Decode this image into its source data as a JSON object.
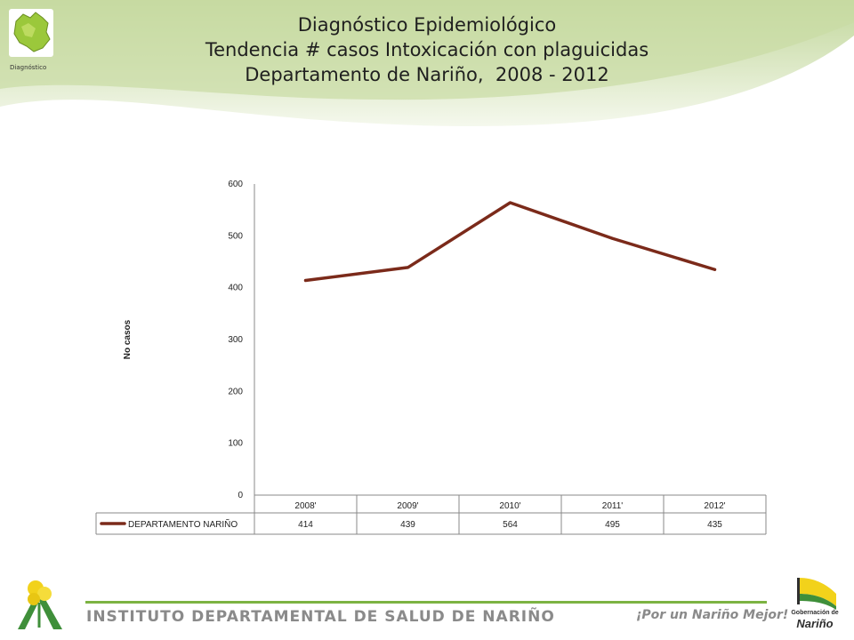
{
  "header": {
    "title_lines": [
      "Diagnóstico Epidemiológico",
      "Tendencia # casos Intoxicación con plaguicidas",
      "Departamento de Nariño,  2008 - 2012"
    ],
    "logo_caption": "Diagnóstico"
  },
  "colors": {
    "series_line": "#7b2a1a",
    "header_green": "#c9dca4",
    "footer_green": "#7cb342"
  },
  "chart_data": {
    "type": "line",
    "title": "",
    "xlabel": "",
    "ylabel": "No casos",
    "categories": [
      "2008'",
      "2009'",
      "2010'",
      "2011'",
      "2012'"
    ],
    "series": [
      {
        "name": "DEPARTAMENTO NARIÑO",
        "values": [
          414,
          439,
          564,
          495,
          435
        ]
      }
    ],
    "ylim": [
      0,
      600
    ],
    "yticks": [
      0,
      100,
      200,
      300,
      400,
      500,
      600
    ],
    "grid": false,
    "legend": "data-table-bottom"
  },
  "footer": {
    "institution": "INSTITUTO DEPARTAMENTAL DE SALUD DE NARIÑO",
    "slogan": "¡Por un Nariño Mejor!",
    "logo_text_small": "Gobernación de",
    "logo_text_big": "Nariño"
  }
}
